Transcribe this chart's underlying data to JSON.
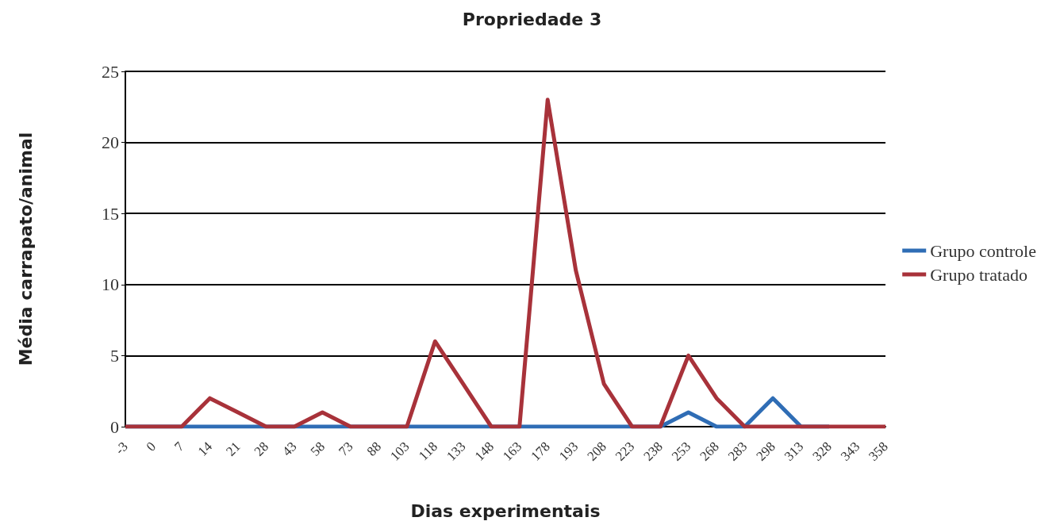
{
  "chart_data": {
    "type": "line",
    "title": "Propriedade 3",
    "xlabel": "Dias experimentais",
    "ylabel": "Média carrapato/animal",
    "categories": [
      "-3",
      "0",
      "7",
      "14",
      "21",
      "28",
      "43",
      "58",
      "73",
      "88",
      "103",
      "118",
      "133",
      "148",
      "163",
      "178",
      "193",
      "208",
      "223",
      "238",
      "253",
      "268",
      "283",
      "298",
      "313",
      "328",
      "343",
      "358"
    ],
    "series": [
      {
        "name": "Grupo controle",
        "color": "#2f6db5",
        "values": [
          0,
          0,
          0,
          0,
          0,
          0,
          0,
          0,
          0,
          0,
          0,
          0,
          0,
          0,
          0,
          0,
          0,
          0,
          0,
          0,
          1,
          0,
          0,
          2,
          0,
          0,
          null,
          null
        ]
      },
      {
        "name": "Grupo tratado",
        "color": "#a8323a",
        "values": [
          0,
          0,
          0,
          2,
          1,
          0,
          0,
          1,
          0,
          0,
          0,
          6,
          3,
          0,
          0,
          23,
          11,
          3,
          0,
          0,
          5,
          2,
          0,
          0,
          0,
          0,
          0,
          0
        ]
      }
    ],
    "ylim": [
      0,
      25
    ],
    "yticks": [
      0,
      5,
      10,
      15,
      20,
      25
    ],
    "grid": "y",
    "legend": "right",
    "marker": "none",
    "line_style": "solid"
  }
}
